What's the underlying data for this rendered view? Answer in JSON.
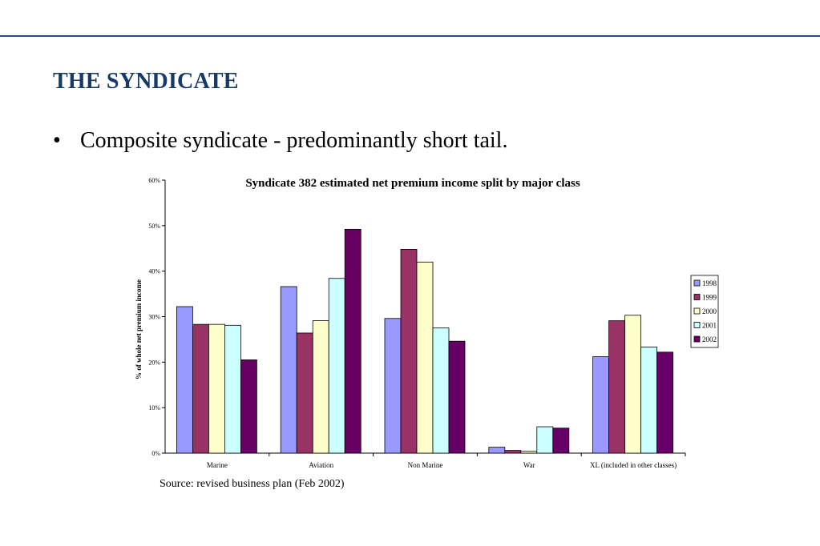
{
  "slide": {
    "title": "THE SYNDICATE",
    "bullet": "Composite syndicate - predominantly short tail.",
    "source": "Source: revised business plan (Feb 2002)"
  },
  "chart_data": {
    "type": "bar",
    "title": "Syndicate 382 estimated net premium income split by major class",
    "xlabel": "",
    "ylabel": "% of whole net premium income",
    "ylim": [
      0,
      60
    ],
    "yticks": [
      "0%",
      "10%",
      "20%",
      "30%",
      "40%",
      "50%",
      "60%"
    ],
    "grid": false,
    "legend_position": "right",
    "categories": [
      "Marine",
      "Aviation",
      "Non Marine",
      "War",
      "XL (included in other classes)"
    ],
    "series": [
      {
        "name": "1998",
        "color": "#9999ff",
        "values": [
          32.2,
          36.6,
          29.6,
          1.3,
          21.2
        ]
      },
      {
        "name": "1999",
        "color": "#993366",
        "values": [
          28.3,
          26.4,
          44.8,
          0.6,
          29.1
        ]
      },
      {
        "name": "2000",
        "color": "#ffffcc",
        "values": [
          28.3,
          29.1,
          42.0,
          0.4,
          30.3
        ]
      },
      {
        "name": "2001",
        "color": "#ccffff",
        "values": [
          28.1,
          38.4,
          27.5,
          5.8,
          23.3
        ]
      },
      {
        "name": "2002",
        "color": "#660066",
        "values": [
          20.5,
          49.2,
          24.6,
          5.5,
          22.2
        ]
      }
    ]
  }
}
